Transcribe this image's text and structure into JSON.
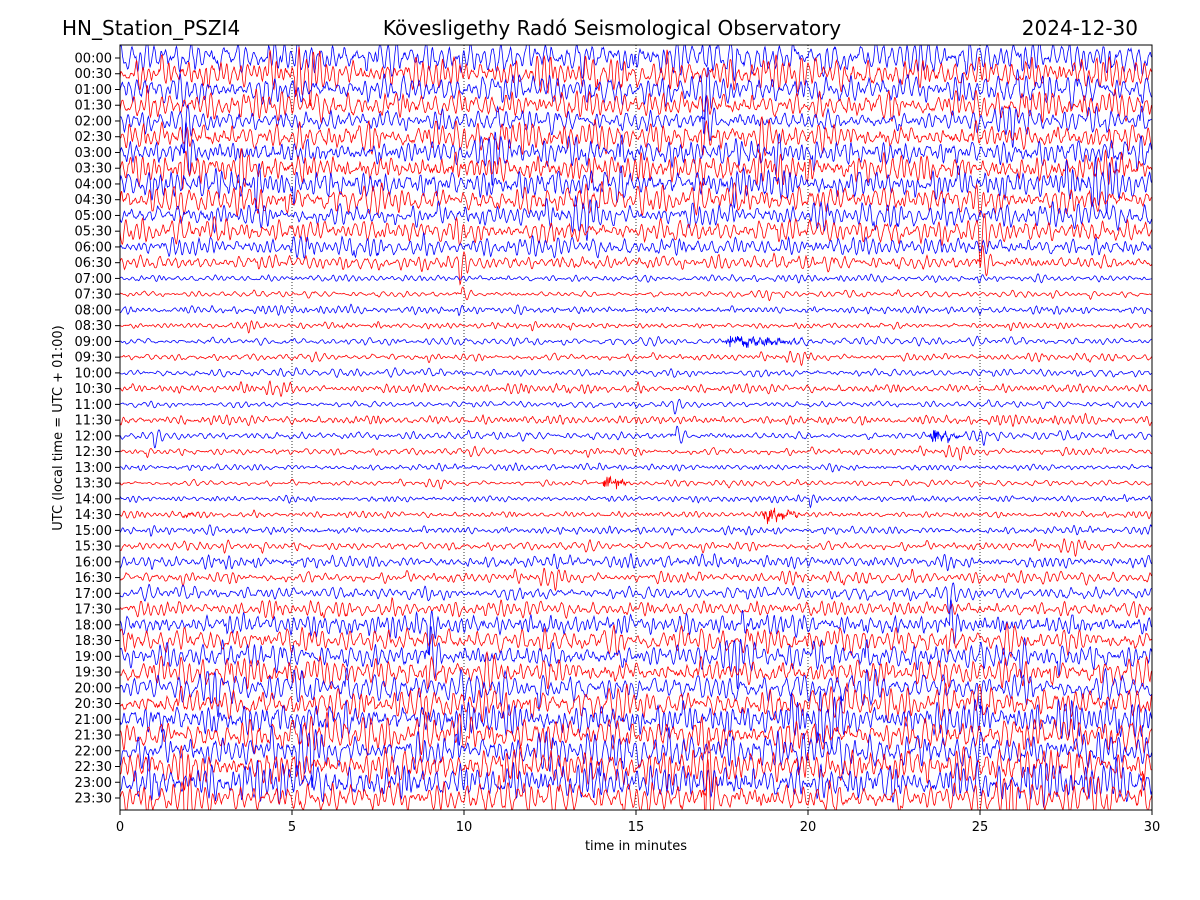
{
  "chart_data": {
    "type": "line",
    "title_left": "HN_Station_PSZI4",
    "title_center": "Kövesligethy Radó Seismological Observatory",
    "title_right": "2024-12-30",
    "xlabel": "time in minutes",
    "ylabel": "UTC (local time = UTC + 01:00)",
    "xlim": [
      0,
      30
    ],
    "xticks": [
      "0",
      "5",
      "10",
      "15",
      "20",
      "25",
      "30"
    ],
    "grid": "vertical dotted at 5-minute intervals",
    "colors": [
      "#0000ff",
      "#ff0000"
    ],
    "rows": [
      "00:00",
      "00:30",
      "01:00",
      "01:30",
      "02:00",
      "02:30",
      "03:00",
      "03:30",
      "04:00",
      "04:30",
      "05:00",
      "05:30",
      "06:00",
      "06:30",
      "07:00",
      "07:30",
      "08:00",
      "08:30",
      "09:00",
      "09:30",
      "10:00",
      "10:30",
      "11:00",
      "11:30",
      "12:00",
      "12:30",
      "13:00",
      "13:30",
      "14:00",
      "14:30",
      "15:00",
      "15:30",
      "16:00",
      "16:30",
      "17:00",
      "17:30",
      "18:00",
      "18:30",
      "19:00",
      "19:30",
      "20:00",
      "20:30",
      "21:00",
      "21:30",
      "22:00",
      "22:30",
      "23:00",
      "23:30"
    ],
    "relative_amplitude": [
      1.1,
      1.1,
      1.0,
      0.9,
      0.8,
      0.9,
      0.9,
      0.9,
      1.0,
      0.9,
      0.8,
      0.8,
      0.6,
      0.5,
      0.22,
      0.22,
      0.25,
      0.2,
      0.25,
      0.25,
      0.25,
      0.3,
      0.22,
      0.3,
      0.3,
      0.25,
      0.2,
      0.2,
      0.2,
      0.2,
      0.25,
      0.3,
      0.4,
      0.4,
      0.45,
      0.5,
      0.7,
      0.8,
      0.9,
      0.9,
      1.0,
      1.0,
      1.1,
      1.1,
      1.2,
      1.2,
      1.2,
      1.2
    ],
    "events": [
      {
        "row": "09:00",
        "start_min": 17.5,
        "end_min": 20.2,
        "relative_amplitude": 0.6
      },
      {
        "row": "12:00",
        "start_min": 23.5,
        "end_min": 24.6,
        "relative_amplitude": 0.6
      },
      {
        "row": "13:30",
        "start_min": 14.0,
        "end_min": 15.0,
        "relative_amplitude": 0.6
      },
      {
        "row": "14:30",
        "start_min": 1.8,
        "end_min": 2.4,
        "relative_amplitude": 0.3
      },
      {
        "row": "14:30",
        "start_min": 18.6,
        "end_min": 20.0,
        "relative_amplitude": 0.75
      }
    ]
  }
}
